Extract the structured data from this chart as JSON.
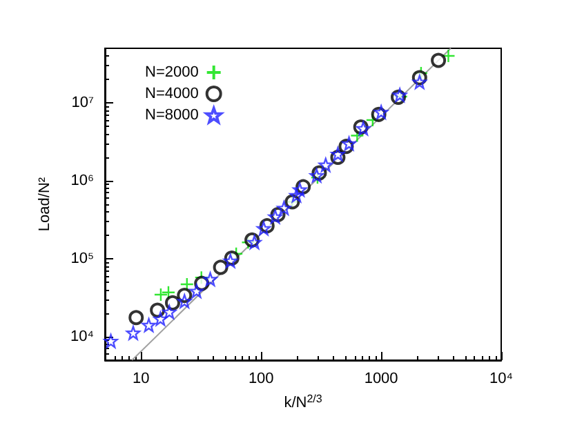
{
  "chart_data": {
    "type": "scatter",
    "xlabel": "k/N$^{2/3}$",
    "ylabel": "Load/N²",
    "log": "xy",
    "grid": false,
    "legend": "top left",
    "xlim": [
      5,
      10000
    ],
    "ylim": [
      5000,
      50000000
    ],
    "xticks": [
      10,
      100,
      1000,
      {
        "value": 10000,
        "label": "10⁴"
      }
    ],
    "yticks": [
      {
        "value": 10000,
        "label": "10⁴"
      },
      {
        "value": 100000,
        "label": "10⁵"
      },
      {
        "value": 1000000,
        "label": "10⁶"
      },
      {
        "value": 10000000,
        "label": "10⁷"
      }
    ],
    "series": [
      {
        "name": "N=2000",
        "color": "#00e000",
        "marker": "cross",
        "x": [
          14.6,
          16.9,
          24.1,
          31.8,
          62,
          78,
          182,
          295,
          631,
          850,
          1460,
          2150,
          3630
        ],
        "values": [
          34700,
          37000,
          47000,
          57500,
          116000,
          162000,
          537000,
          1100000,
          3800000,
          6000000,
          12000000,
          24000000,
          40000000
        ]
      },
      {
        "name": "N=4000",
        "color": "#000000",
        "marker": "circle",
        "x": [
          9.1,
          13.7,
          18.3,
          23,
          32,
          46,
          57,
          84,
          112,
          138,
          182,
          224,
          305,
          436,
          511,
          677,
          955,
          1390,
          2090,
          3000
        ],
        "values": [
          17600,
          21900,
          27200,
          33900,
          48300,
          77600,
          102000,
          174000,
          265000,
          368000,
          537000,
          838000,
          1260000,
          2000000,
          2760000,
          4900000,
          7100000,
          11800000,
          21000000,
          35000000
        ]
      },
      {
        "name": "N=8000",
        "color": "#2020ff",
        "marker": "star",
        "x": [
          5.6,
          8.6,
          11.6,
          14.5,
          17.2,
          23,
          29,
          37.7,
          55.5,
          88,
          105,
          131,
          155,
          197,
          210,
          290,
          345,
          436,
          540,
          710,
          1000,
          1430,
          2090
        ],
        "values": [
          8800,
          11200,
          14100,
          17000,
          20800,
          28600,
          38600,
          54700,
          94000,
          163000,
          245000,
          347000,
          447000,
          650000,
          770000,
          1170000,
          1600000,
          2200000,
          3000000,
          4700000,
          7600000,
          12600000,
          18500000
        ]
      },
      {
        "type": "line",
        "color": "#a0a0a0",
        "marker": "none",
        "x": [
          8.4,
          3800
        ],
        "values": [
          5000,
          50000000
        ]
      }
    ]
  }
}
